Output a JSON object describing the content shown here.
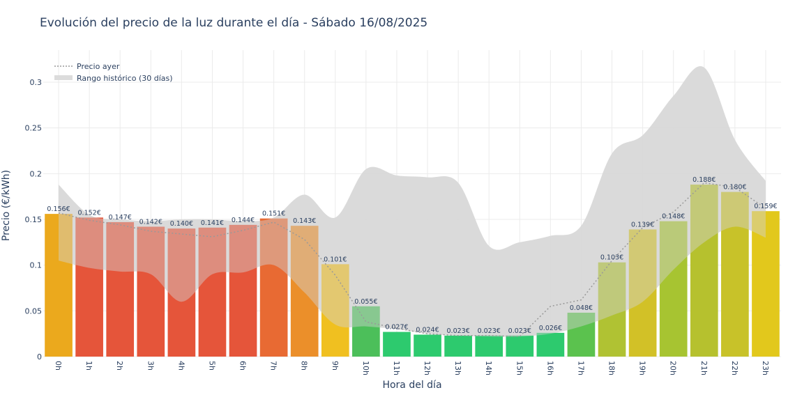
{
  "chart_data": {
    "type": "bar",
    "title": "Evolución del precio de la luz durante el día - Sábado 16/08/2025",
    "xlabel": "Hora del día",
    "ylabel": "Precio (€/kWh)",
    "ylim": [
      0,
      0.335
    ],
    "yticks": [
      0,
      0.05,
      0.1,
      0.15,
      0.2,
      0.25,
      0.3
    ],
    "ytick_labels": [
      "0",
      "0.05",
      "0.1",
      "0.15",
      "0.2",
      "0.25",
      "0.3"
    ],
    "grid": true,
    "legend_position": "top-left",
    "categories": [
      "0h",
      "1h",
      "2h",
      "3h",
      "4h",
      "5h",
      "6h",
      "7h",
      "8h",
      "9h",
      "10h",
      "11h",
      "12h",
      "13h",
      "14h",
      "15h",
      "16h",
      "17h",
      "18h",
      "19h",
      "20h",
      "21h",
      "22h",
      "23h"
    ],
    "values": [
      0.156,
      0.152,
      0.147,
      0.142,
      0.14,
      0.141,
      0.144,
      0.151,
      0.143,
      0.101,
      0.055,
      0.027,
      0.024,
      0.023,
      0.023,
      0.023,
      0.026,
      0.048,
      0.103,
      0.139,
      0.148,
      0.188,
      0.18,
      0.159
    ],
    "value_labels": [
      "0.156€",
      "0.152€",
      "0.147€",
      "0.142€",
      "0.140€",
      "0.141€",
      "0.144€",
      "0.151€",
      "0.143€",
      "0.101€",
      "0.055€",
      "0.027€",
      "0.024€",
      "0.023€",
      "0.023€",
      "0.023€",
      "0.026€",
      "0.048€",
      "0.103€",
      "0.139€",
      "0.148€",
      "0.188€",
      "0.180€",
      "0.159€"
    ],
    "bar_colors": [
      "#eba91d",
      "#e5553a",
      "#e5553a",
      "#e5553a",
      "#e5553a",
      "#e5553a",
      "#e5553a",
      "#e86a33",
      "#eb8f2a",
      "#f0c020",
      "#4cbf5a",
      "#2dca6e",
      "#2dca6e",
      "#2dca6e",
      "#2dca6e",
      "#2dca6e",
      "#2dca6e",
      "#5bc24e",
      "#b0c233",
      "#d2c127",
      "#a7c431",
      "#b6c12e",
      "#c8c229",
      "#e2c81c"
    ],
    "series": [
      {
        "name": "Precio ayer",
        "style": "dotted-line",
        "color": "#999999",
        "values": [
          0.157,
          0.149,
          0.144,
          0.137,
          0.134,
          0.131,
          0.138,
          0.147,
          0.128,
          0.089,
          0.038,
          0.031,
          0.025,
          0.023,
          0.023,
          0.022,
          0.055,
          0.062,
          0.105,
          0.141,
          0.158,
          0.19,
          0.185,
          0.162
        ]
      },
      {
        "name": "Rango histórico (30 días)",
        "style": "band",
        "color": "#dcdcdc",
        "upper": [
          0.188,
          0.155,
          0.15,
          0.148,
          0.15,
          0.15,
          0.148,
          0.152,
          0.177,
          0.152,
          0.205,
          0.198,
          0.196,
          0.19,
          0.121,
          0.125,
          0.132,
          0.143,
          0.222,
          0.242,
          0.285,
          0.316,
          0.237,
          0.192
        ],
        "lower": [
          0.105,
          0.097,
          0.093,
          0.09,
          0.06,
          0.09,
          0.092,
          0.1,
          0.07,
          0.035,
          0.033,
          0.03,
          0.025,
          0.023,
          0.022,
          0.022,
          0.025,
          0.033,
          0.045,
          0.06,
          0.095,
          0.125,
          0.142,
          0.13
        ]
      }
    ]
  }
}
